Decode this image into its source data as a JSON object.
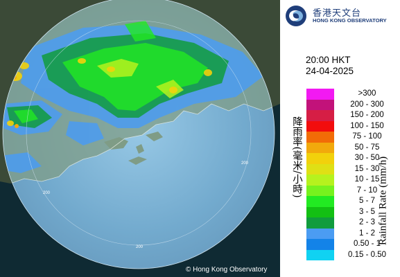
{
  "logo": {
    "chinese_name": "香港天文台",
    "english_name": "HONG KONG OBSERVATORY",
    "emblem_icon": "hko-swirl-emblem-icon"
  },
  "valid_time": {
    "time": "20:00 HKT",
    "date": "24-04-2025"
  },
  "legend": {
    "title_chinese": "降雨率(毫米/小時)",
    "title_english": "Rainfall Rate (mm/h)",
    "items": [
      {
        "label": ">300",
        "color": "#f219f2"
      },
      {
        "label": "200 - 300",
        "color": "#c2127a"
      },
      {
        "label": "150 - 200",
        "color": "#d61e45"
      },
      {
        "label": "100 - 150",
        "color": "#f20d0d"
      },
      {
        "label": "75 - 100",
        "color": "#f26c07"
      },
      {
        "label": "50 - 75",
        "color": "#f2a90c"
      },
      {
        "label": "30 - 50",
        "color": "#f2d10c"
      },
      {
        "label": "15 - 30",
        "color": "#dfe015"
      },
      {
        "label": "10 - 15",
        "color": "#b6f21e"
      },
      {
        "label": "7 - 10",
        "color": "#77f21e"
      },
      {
        "label": "5 - 7",
        "color": "#22ea22"
      },
      {
        "label": "3 - 5",
        "color": "#13c013"
      },
      {
        "label": "2 - 3",
        "color": "#119c3d"
      },
      {
        "label": "1 - 2",
        "color": "#4b9cf2"
      },
      {
        "label": "0.50 - 1",
        "color": "#1383e8"
      },
      {
        "label": "0.15 - 0.50",
        "color": "#10d2f2"
      }
    ]
  },
  "map": {
    "range_ring_label": "200",
    "copyright": "© Hong Kong Observatory",
    "sea_color": "#0f2a33",
    "land_color": "#3b4a37",
    "coverage_color": "#7fb3d9"
  }
}
